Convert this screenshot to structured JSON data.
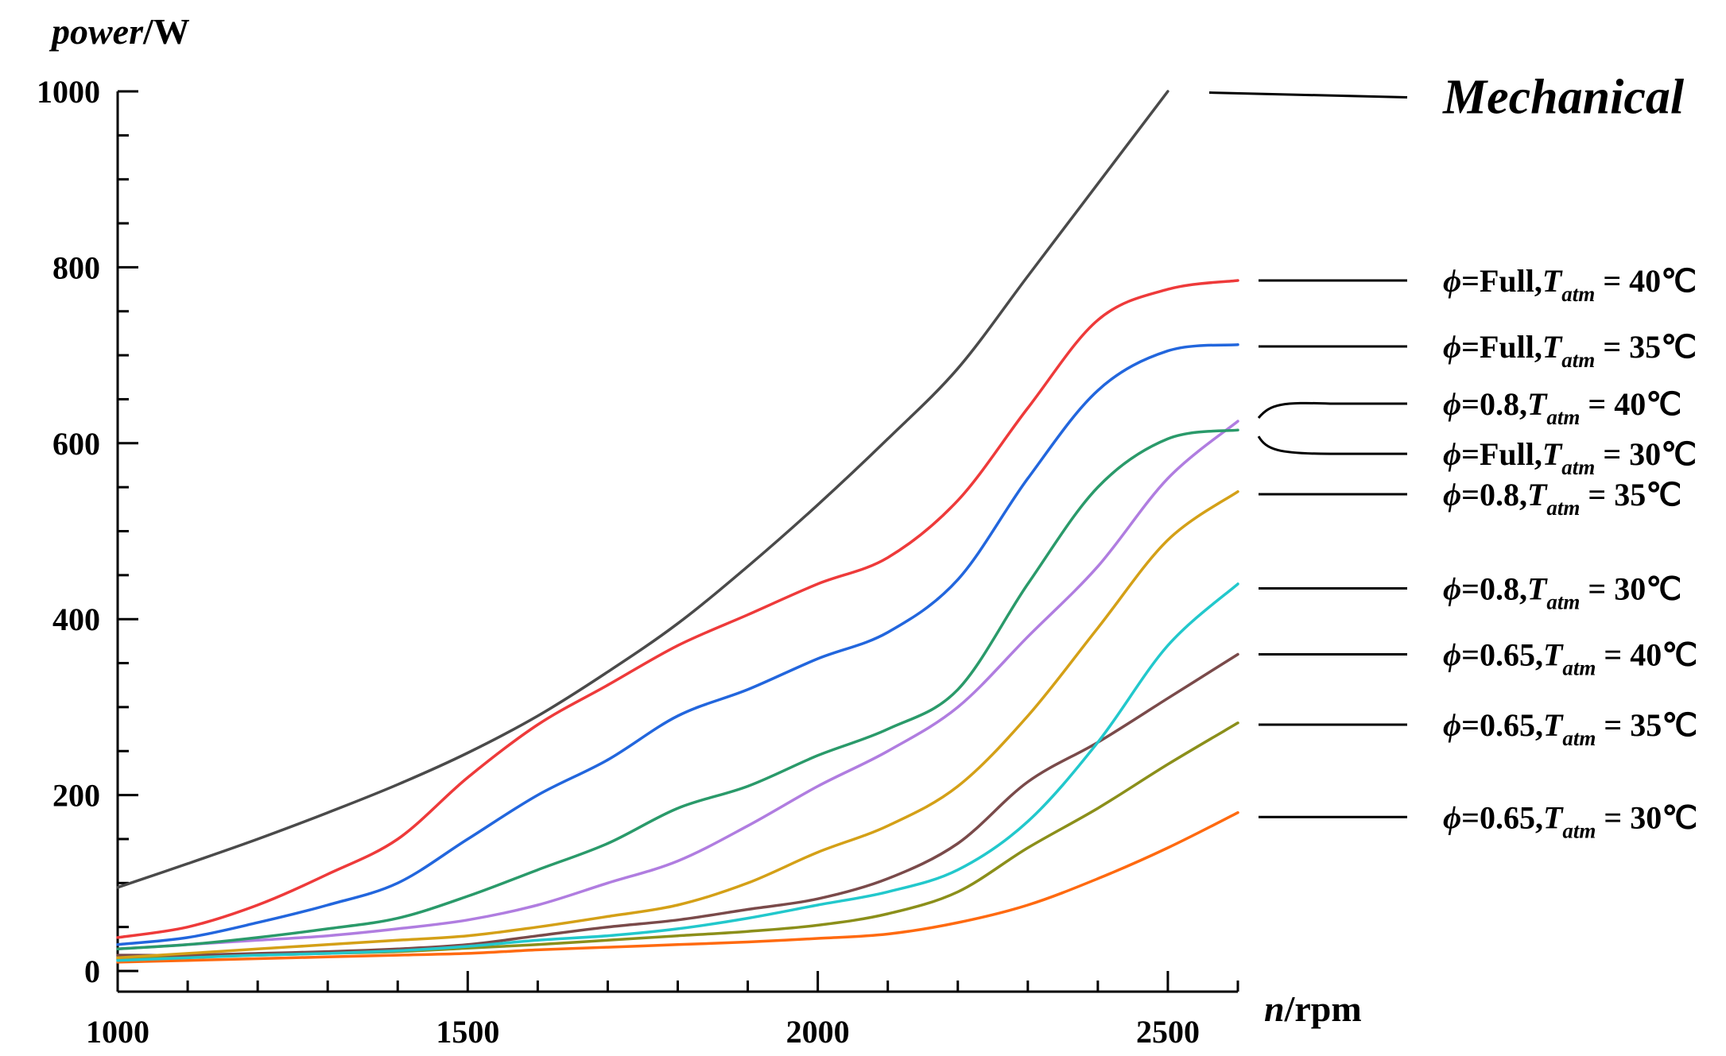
{
  "chart_data": {
    "type": "line",
    "title": "",
    "ylabel_italic": "power",
    "ylabel_unit": "/W",
    "xlabel_italic": "n",
    "xlabel_unit": "/rpm",
    "xlim": [
      1000,
      2600
    ],
    "ylim": [
      0,
      1000
    ],
    "x_ticks": [
      1000,
      1500,
      2000,
      2500
    ],
    "y_ticks": [
      0,
      200,
      400,
      600,
      800,
      1000
    ],
    "x": [
      1000,
      1100,
      1200,
      1300,
      1400,
      1500,
      1600,
      1700,
      1800,
      1900,
      2000,
      2100,
      2200,
      2300,
      2400,
      2500,
      2600
    ],
    "series": [
      {
        "name": "Mechanical",
        "color": "#4a4a4a",
        "values": [
          95,
          122,
          150,
          180,
          212,
          248,
          290,
          340,
          395,
          460,
          530,
          605,
          685,
          790,
          895,
          1000,
          null
        ],
        "legend": {
          "kind": "mech",
          "text": "Mechanical",
          "line_value": 995
        }
      },
      {
        "name": "phi=Full, Tatm=40C",
        "color": "#ee3a3a",
        "values": [
          38,
          50,
          75,
          110,
          150,
          220,
          280,
          325,
          370,
          405,
          440,
          470,
          535,
          640,
          740,
          775,
          785
        ],
        "legend": {
          "phi": "Full",
          "temp": "40",
          "line_value": 785
        }
      },
      {
        "name": "phi=Full, Tatm=35C",
        "color": "#2266dd",
        "values": [
          30,
          38,
          55,
          75,
          100,
          150,
          200,
          240,
          290,
          320,
          355,
          385,
          445,
          560,
          660,
          705,
          712
        ],
        "legend": {
          "phi": "Full",
          "temp": "35",
          "line_value": 710
        }
      },
      {
        "name": "phi=Full, Tatm=30C",
        "color": "#2a9a6a",
        "values": [
          25,
          30,
          38,
          48,
          60,
          85,
          115,
          145,
          185,
          210,
          245,
          275,
          320,
          440,
          550,
          605,
          615
        ],
        "legend": {
          "phi": "Full",
          "temp": "30",
          "line_value": 588,
          "curved": "down"
        }
      },
      {
        "name": "phi=0.8, Tatm=40C",
        "color": "#b07de0",
        "values": [
          25,
          30,
          35,
          40,
          48,
          58,
          75,
          100,
          125,
          165,
          210,
          250,
          300,
          380,
          460,
          560,
          625
        ],
        "legend": {
          "phi": "0.8",
          "temp": "40",
          "line_value": 645,
          "curved": "up"
        }
      },
      {
        "name": "phi=0.8, Tatm=35C",
        "color": "#d4a017",
        "values": [
          15,
          20,
          25,
          30,
          35,
          40,
          50,
          62,
          75,
          100,
          135,
          165,
          210,
          290,
          390,
          490,
          545
        ],
        "legend": {
          "phi": "0.8",
          "temp": "35",
          "line_value": 542
        }
      },
      {
        "name": "phi=0.8, Tatm=30C",
        "color": "#22c8cc",
        "values": [
          12,
          15,
          18,
          20,
          23,
          28,
          35,
          40,
          48,
          60,
          75,
          90,
          115,
          170,
          260,
          370,
          440
        ],
        "legend": {
          "phi": "0.8",
          "temp": "30",
          "line_value": 435
        }
      },
      {
        "name": "phi=0.65, Tatm=40C",
        "color": "#7a4a4a",
        "values": [
          18,
          18,
          20,
          22,
          25,
          30,
          40,
          50,
          58,
          70,
          82,
          105,
          145,
          215,
          260,
          310,
          360
        ],
        "legend": {
          "phi": "0.65",
          "temp": "40",
          "line_value": 360
        }
      },
      {
        "name": "phi=0.65, Tatm=35C",
        "color": "#8b8f1a",
        "values": [
          15,
          16,
          18,
          20,
          22,
          26,
          30,
          35,
          40,
          45,
          52,
          65,
          90,
          140,
          185,
          235,
          282
        ],
        "legend": {
          "phi": "0.65",
          "temp": "35",
          "line_value": 280
        }
      },
      {
        "name": "phi=0.65, Tatm=30C",
        "color": "#ff6a10",
        "values": [
          10,
          12,
          14,
          16,
          18,
          20,
          24,
          27,
          30,
          33,
          37,
          42,
          55,
          75,
          105,
          140,
          180
        ],
        "legend": {
          "phi": "0.65",
          "temp": "30",
          "line_value": 175
        }
      }
    ],
    "legend_symbol": "ϕ",
    "legend_eq": "=",
    "legend_tatm_main": "T",
    "legend_tatm_sub": "atm",
    "legend_unit": "℃"
  }
}
